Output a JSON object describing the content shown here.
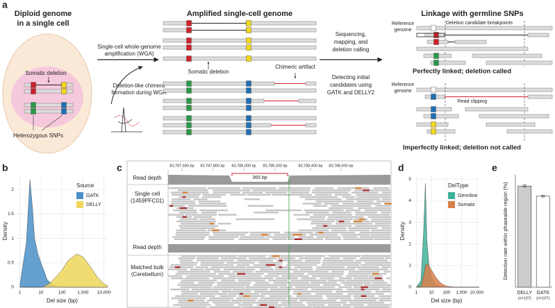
{
  "panel_labels": [
    "a",
    "b",
    "c",
    "d",
    "e"
  ],
  "diagram": {
    "stage1": {
      "title": [
        "Diploid genome",
        "in a single cell"
      ],
      "somatic_deletion": "Somatic deletion",
      "snps": "Heterozygous SNPs"
    },
    "step1": [
      "Single-cell whole-genome",
      "amplification (WGA)"
    ],
    "chimera": [
      "Deletion-like chimera",
      "formation during WGA"
    ],
    "stage2": {
      "title": "Amplified single-cell genome",
      "somatic_deletion": "Somatic deletion",
      "chimeric": "Chimeric artifact"
    },
    "step2": [
      "Sequencing,",
      "mapping, and",
      "deletion calling"
    ],
    "step3": [
      "Detecting initial",
      "candidates using",
      "GATK and DELLY2"
    ],
    "stage3": {
      "title": "Linkage with germline SNPs",
      "reference_1": [
        "Reference",
        "genome"
      ],
      "breakpoints": "Deletion candidate breakpoints",
      "perfect": "Perfectly linked; deletion called",
      "reference_2": [
        "Reference",
        "genome"
      ],
      "clipping": "Read clipping",
      "imperfect": "Imperfectly linked; deletion not called"
    }
  },
  "igv": {
    "ruler": [
      "83,787,600 bp",
      "83,787,800 bp",
      "83,788,000 bp",
      "83,788,200 bp",
      "83,788,400 bp",
      "83,788,600 bp"
    ],
    "span": "365 bp",
    "tracks": [
      "Read depth",
      [
        "Single cell",
        "(1459PFC01)"
      ],
      "Read depth",
      [
        "Matched bulk",
        "(Cerebellum)"
      ]
    ]
  },
  "chart_data": [
    {
      "type": "area",
      "x_label": "Del size (bp)",
      "y_label": "Density",
      "legend_title": "Source",
      "legend": "upper-right",
      "log_x": true,
      "grid": true,
      "x": [
        1,
        2,
        3,
        4,
        5,
        7,
        10,
        15,
        20,
        30,
        50,
        100,
        200,
        500,
        1000,
        2000,
        5000,
        10000,
        15000
      ],
      "series": [
        {
          "name": "GATK",
          "color": "#4a8fc7",
          "values": [
            0.05,
            0.9,
            2.2,
            1.6,
            1.0,
            0.7,
            0.5,
            0.3,
            0.15,
            0.08,
            0.02,
            0,
            0,
            0,
            0,
            0,
            0,
            0,
            0
          ]
        },
        {
          "name": "DELLY",
          "color": "#eed65a",
          "values": [
            0,
            0,
            0,
            0,
            0,
            0,
            0,
            0.02,
            0.05,
            0.1,
            0.2,
            0.35,
            0.55,
            0.68,
            0.62,
            0.45,
            0.2,
            0.07,
            0.03
          ]
        }
      ],
      "xlim": [
        0.7,
        15000
      ],
      "xticks": [
        1,
        10,
        100,
        {
          "value": 1000,
          "label": "1,000"
        },
        {
          "value": 10000,
          "label": "10,000"
        }
      ],
      "ylim": [
        0,
        2.3
      ],
      "yticks": [
        0,
        0.5,
        1,
        1.5,
        2
      ]
    },
    {
      "type": "area",
      "x_label": "Del size (bp)",
      "y_label": "Density",
      "legend_title": "DelType",
      "legend": "upper-right",
      "log_x": true,
      "grid": true,
      "x": [
        1,
        2,
        3,
        4,
        5,
        7,
        10,
        15,
        20,
        30,
        50,
        100,
        200,
        500,
        1000,
        2000,
        5000,
        10000,
        15000
      ],
      "series": [
        {
          "name": "Germline",
          "color": "#3fb29a",
          "values": [
            0,
            0.3,
            2.5,
            4.8,
            2.2,
            1.0,
            0.5,
            0.25,
            0.12,
            0.06,
            0.03,
            0.01,
            0,
            0,
            0,
            0,
            0,
            0,
            0
          ]
        },
        {
          "name": "Somatic",
          "color": "#d9804a",
          "values": [
            0,
            0.05,
            0.5,
            1.0,
            1.1,
            1.0,
            0.8,
            0.6,
            0.45,
            0.3,
            0.15,
            0.05,
            0.02,
            0,
            0,
            0,
            0,
            0,
            0
          ]
        }
      ],
      "xlim": [
        0.7,
        15000
      ],
      "xticks": [
        1,
        10,
        100,
        {
          "value": 1000,
          "label": "1,000"
        },
        {
          "value": 10000,
          "label": "10,000"
        }
      ],
      "ylim": [
        0,
        5.2
      ],
      "yticks": [
        0,
        1,
        2,
        3,
        4,
        5
      ]
    },
    {
      "type": "bar",
      "y_label": "Detection rate within phaseable region (%)",
      "categories": [
        "DELLY",
        "GATK"
      ],
      "category_notes": [
        "(n=107)",
        "(n=107)"
      ],
      "values": [
        90,
        81
      ],
      "errors": [
        1,
        0.8
      ],
      "colors": [
        "#cccccc",
        "#ffffff"
      ],
      "ylim": [
        0,
        100
      ]
    }
  ]
}
